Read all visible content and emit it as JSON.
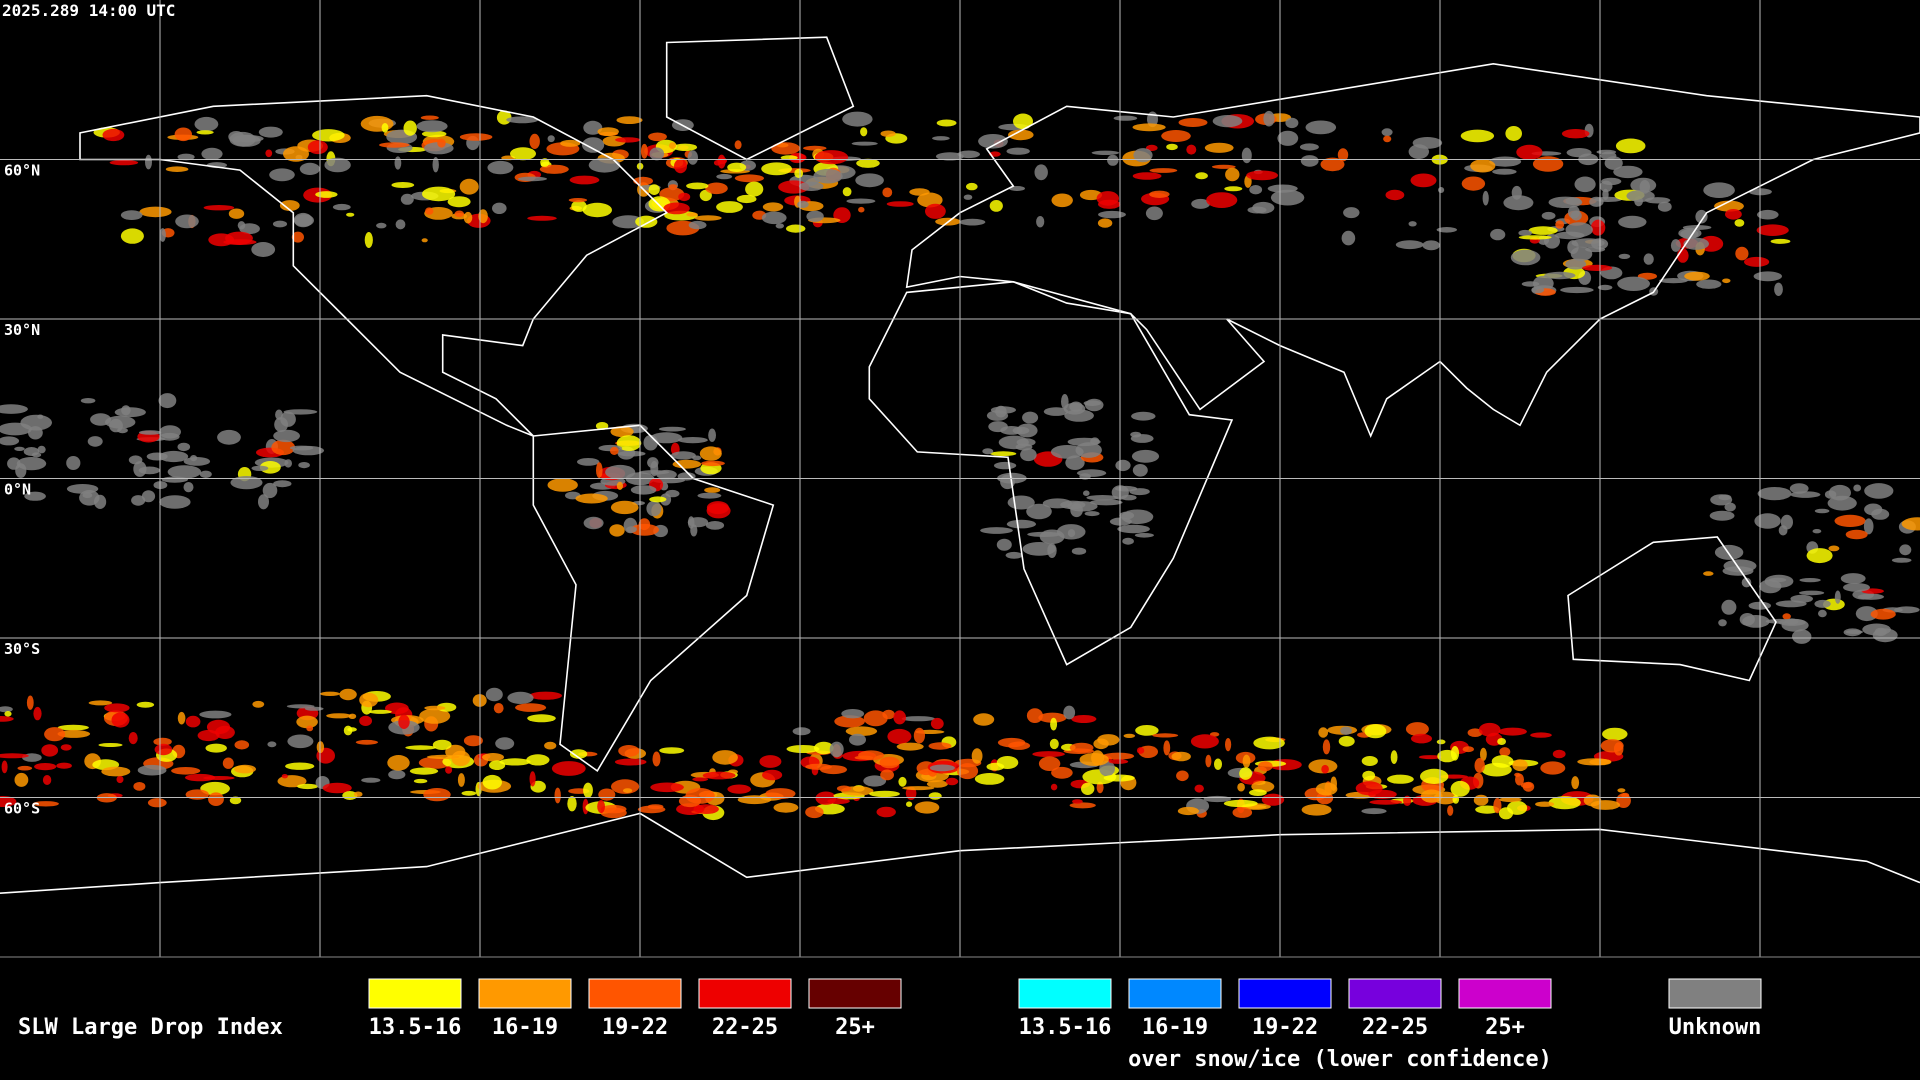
{
  "header": {
    "timestamp": "2025.289 14:00 UTC"
  },
  "map": {
    "latitude_labels": [
      "60°N",
      "30°N",
      "0°N",
      "30°S",
      "60°S"
    ]
  },
  "legend": {
    "title": "SLW Large Drop Index",
    "groups": [
      {
        "items": [
          {
            "label": "13.5-16",
            "color": "#ffff00"
          },
          {
            "label": "16-19",
            "color": "#ff9900"
          },
          {
            "label": "19-22",
            "color": "#ff5500"
          },
          {
            "label": "22-25",
            "color": "#ee0000"
          },
          {
            "label": "25+",
            "color": "#660000"
          }
        ]
      },
      {
        "items": [
          {
            "label": "13.5-16",
            "color": "#00ffff"
          },
          {
            "label": "16-19",
            "color": "#0088ff"
          },
          {
            "label": "19-22",
            "color": "#0000ff"
          },
          {
            "label": "22-25",
            "color": "#7700dd"
          },
          {
            "label": "25+",
            "color": "#cc00cc"
          }
        ],
        "caption": "over snow/ice (lower confidence)"
      }
    ],
    "unknown": {
      "label": "Unknown",
      "color": "#808080"
    }
  }
}
